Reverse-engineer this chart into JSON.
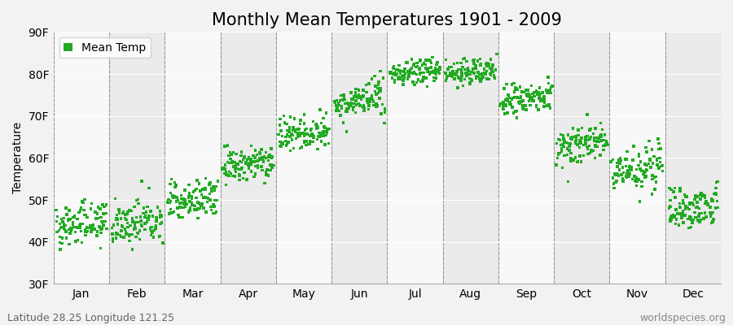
{
  "title": "Monthly Mean Temperatures 1901 - 2009",
  "ylabel": "Temperature",
  "xlabel_bottom_left": "Latitude 28.25 Longitude 121.25",
  "xlabel_bottom_right": "worldspecies.org",
  "legend_label": "Mean Temp",
  "ylim": [
    30,
    90
  ],
  "yticks": [
    30,
    40,
    50,
    60,
    70,
    80,
    90
  ],
  "ytick_labels": [
    "30F",
    "40F",
    "50F",
    "60F",
    "70F",
    "80F",
    "90F"
  ],
  "months": [
    "Jan",
    "Feb",
    "Mar",
    "Apr",
    "May",
    "Jun",
    "Jul",
    "Aug",
    "Sep",
    "Oct",
    "Nov",
    "Dec"
  ],
  "n_years": 109,
  "monthly_means": [
    44.5,
    44.5,
    50.0,
    58.5,
    66.0,
    73.5,
    80.5,
    80.5,
    74.0,
    63.5,
    57.5,
    48.5
  ],
  "monthly_stds": [
    2.5,
    2.5,
    2.5,
    2.0,
    2.0,
    2.0,
    1.5,
    1.5,
    2.0,
    2.5,
    2.5,
    2.5
  ],
  "monthly_trends": [
    0.015,
    0.015,
    0.018,
    0.018,
    0.018,
    0.015,
    0.012,
    0.012,
    0.015,
    0.018,
    0.018,
    0.018
  ],
  "dot_color": "#22aa22",
  "bg_color": "#f2f2f2",
  "band_color_light": "#f8f8f8",
  "band_color_dark": "#ebebeb",
  "marker": "s",
  "marker_size": 2.5,
  "title_fontsize": 15,
  "axis_fontsize": 10,
  "tick_fontsize": 10,
  "footer_fontsize": 9,
  "legend_fontsize": 10
}
